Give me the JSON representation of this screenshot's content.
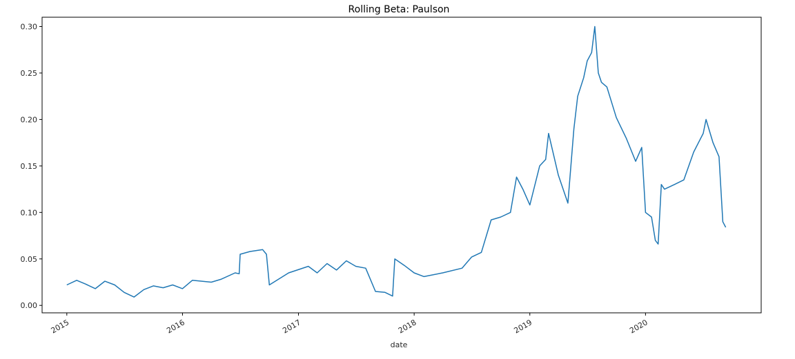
{
  "chart_data": {
    "type": "line",
    "title": "Rolling Beta: Paulson",
    "xlabel": "date",
    "ylabel": "",
    "ylim": [
      -0.008,
      0.31
    ],
    "xlim": [
      "2014-10-15",
      "2020-12-31"
    ],
    "y_ticks": [
      0.0,
      0.05,
      0.1,
      0.15,
      0.2,
      0.25,
      0.3
    ],
    "y_tick_labels": [
      "0.00",
      "0.05",
      "0.10",
      "0.15",
      "0.20",
      "0.25",
      "0.30"
    ],
    "x_ticks": [
      "2015-01-01",
      "2016-01-01",
      "2017-01-01",
      "2018-01-01",
      "2019-01-01",
      "2020-01-01"
    ],
    "x_tick_labels": [
      "2015",
      "2016",
      "2017",
      "2018",
      "2019",
      "2020"
    ],
    "grid": false,
    "line_color": "#1f77b4",
    "series": [
      {
        "x": [
          "2015-01-01",
          "2015-02-01",
          "2015-03-01",
          "2015-04-01",
          "2015-05-01",
          "2015-06-01",
          "2015-07-01",
          "2015-08-01",
          "2015-09-01",
          "2015-10-01",
          "2015-11-01",
          "2015-12-01",
          "2016-01-01",
          "2016-02-01",
          "2016-04-01",
          "2016-05-01",
          "2016-06-15",
          "2016-06-28",
          "2016-07-01",
          "2016-08-01",
          "2016-09-10",
          "2016-09-22",
          "2016-10-01",
          "2016-12-01",
          "2017-02-01",
          "2017-03-01",
          "2017-04-01",
          "2017-05-01",
          "2017-06-01",
          "2017-07-01",
          "2017-08-01",
          "2017-09-01",
          "2017-10-01",
          "2017-10-25",
          "2017-11-01",
          "2017-12-01",
          "2018-01-01",
          "2018-02-01",
          "2018-04-01",
          "2018-06-01",
          "2018-07-01",
          "2018-08-01",
          "2018-09-01",
          "2018-10-01",
          "2018-11-01",
          "2018-11-20",
          "2018-12-10",
          "2019-01-01",
          "2019-02-01",
          "2019-02-20",
          "2019-03-01",
          "2019-04-01",
          "2019-05-01",
          "2019-05-20",
          "2019-06-01",
          "2019-06-20",
          "2019-07-01",
          "2019-07-15",
          "2019-07-25",
          "2019-08-05",
          "2019-08-15",
          "2019-09-01",
          "2019-10-01",
          "2019-11-01",
          "2019-12-01",
          "2019-12-20",
          "2020-01-01",
          "2020-01-20",
          "2020-02-01",
          "2020-02-10",
          "2020-02-20",
          "2020-03-01",
          "2020-04-01",
          "2020-05-01",
          "2020-06-01",
          "2020-07-01",
          "2020-07-10",
          "2020-08-01",
          "2020-08-20",
          "2020-09-01",
          "2020-09-10"
        ],
        "values": [
          0.022,
          0.027,
          0.023,
          0.018,
          0.026,
          0.022,
          0.014,
          0.009,
          0.017,
          0.021,
          0.019,
          0.022,
          0.018,
          0.027,
          0.025,
          0.028,
          0.035,
          0.034,
          0.055,
          0.058,
          0.06,
          0.055,
          0.022,
          0.035,
          0.042,
          0.035,
          0.045,
          0.038,
          0.048,
          0.042,
          0.04,
          0.015,
          0.014,
          0.01,
          0.05,
          0.043,
          0.035,
          0.031,
          0.035,
          0.04,
          0.052,
          0.057,
          0.092,
          0.095,
          0.1,
          0.138,
          0.125,
          0.108,
          0.15,
          0.157,
          0.185,
          0.14,
          0.11,
          0.19,
          0.225,
          0.245,
          0.263,
          0.272,
          0.3,
          0.25,
          0.24,
          0.235,
          0.202,
          0.18,
          0.155,
          0.17,
          0.1,
          0.095,
          0.07,
          0.066,
          0.13,
          0.125,
          0.13,
          0.135,
          0.165,
          0.185,
          0.2,
          0.175,
          0.16,
          0.09,
          0.084
        ]
      }
    ]
  }
}
